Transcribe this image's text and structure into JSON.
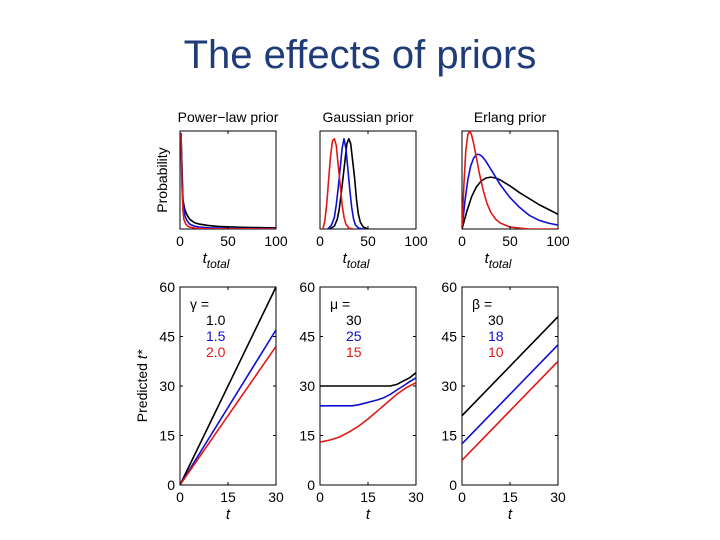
{
  "slide": {
    "title": "The effects of priors"
  },
  "colors": {
    "title": "#1f3b78",
    "black": "#000000",
    "blue": "#1010d0",
    "red": "#e01818",
    "axis": "#000000"
  },
  "chart_data": [
    {
      "id": "powerlaw-prior",
      "type": "line",
      "title": "Power−law prior",
      "ylabel": "Probability",
      "xlabel_main": "t",
      "xlabel_sub": "total",
      "xlim": [
        0,
        100
      ],
      "ylim": [
        0,
        1
      ],
      "xticks": [
        0,
        50,
        100
      ],
      "yticks": [],
      "series": [
        {
          "name": "1.0",
          "color": "black",
          "x": [
            1,
            3,
            5,
            7,
            10,
            15,
            20,
            30,
            40,
            50,
            60,
            70,
            80,
            90,
            100
          ],
          "y": [
            0.98,
            0.3,
            0.2,
            0.15,
            0.1,
            0.065,
            0.05,
            0.035,
            0.027,
            0.022,
            0.018,
            0.016,
            0.014,
            0.012,
            0.011
          ]
        },
        {
          "name": "1.5",
          "color": "blue",
          "x": [
            1,
            2,
            3,
            5,
            7,
            10,
            15,
            20,
            30,
            50,
            100
          ],
          "y": [
            0.98,
            0.6,
            0.3,
            0.14,
            0.09,
            0.05,
            0.03,
            0.02,
            0.012,
            0.006,
            0.002
          ]
        },
        {
          "name": "2.0",
          "color": "red",
          "x": [
            1,
            2,
            3,
            4,
            6,
            8,
            10,
            15,
            20,
            30,
            50,
            100
          ],
          "y": [
            0.98,
            0.45,
            0.2,
            0.1,
            0.05,
            0.03,
            0.02,
            0.01,
            0.005,
            0.002,
            0.001,
            0
          ]
        }
      ]
    },
    {
      "id": "gaussian-prior",
      "type": "line",
      "title": "Gaussian prior",
      "ylabel": "",
      "xlabel_main": "t",
      "xlabel_sub": "total",
      "xlim": [
        0,
        100
      ],
      "ylim": [
        0,
        1
      ],
      "xticks": [
        0,
        50,
        100
      ],
      "yticks": [],
      "series": [
        {
          "name": "30",
          "color": "black",
          "x": [
            10,
            15,
            18,
            20,
            22,
            24,
            26,
            28,
            30,
            32,
            34,
            36,
            38,
            40,
            42,
            45,
            50
          ],
          "y": [
            0,
            0.03,
            0.1,
            0.2,
            0.35,
            0.52,
            0.7,
            0.87,
            0.92,
            0.87,
            0.7,
            0.52,
            0.3,
            0.15,
            0.07,
            0.02,
            0
          ]
        },
        {
          "name": "25",
          "color": "blue",
          "x": [
            8,
            12,
            15,
            17,
            19,
            21,
            23,
            25,
            27,
            29,
            31,
            33,
            35,
            37,
            40,
            45
          ],
          "y": [
            0,
            0.04,
            0.12,
            0.25,
            0.42,
            0.62,
            0.82,
            0.92,
            0.82,
            0.62,
            0.4,
            0.22,
            0.1,
            0.04,
            0.01,
            0
          ]
        },
        {
          "name": "15",
          "color": "red",
          "x": [
            3,
            5,
            7,
            9,
            11,
            13,
            15,
            17,
            19,
            21,
            23,
            25,
            27,
            30,
            35
          ],
          "y": [
            0,
            0.08,
            0.25,
            0.5,
            0.75,
            0.9,
            0.92,
            0.85,
            0.65,
            0.45,
            0.25,
            0.12,
            0.05,
            0.01,
            0
          ]
        }
      ]
    },
    {
      "id": "erlang-prior",
      "type": "line",
      "title": "Erlang prior",
      "ylabel": "",
      "xlabel_main": "t",
      "xlabel_sub": "total",
      "xlim": [
        0,
        100
      ],
      "ylim": [
        0,
        1
      ],
      "xticks": [
        0,
        50,
        100
      ],
      "yticks": [],
      "series": [
        {
          "name": "30",
          "color": "black",
          "x": [
            0,
            5,
            10,
            15,
            20,
            25,
            30,
            35,
            40,
            50,
            60,
            70,
            80,
            90,
            100
          ],
          "y": [
            0,
            0.18,
            0.33,
            0.43,
            0.49,
            0.52,
            0.53,
            0.52,
            0.5,
            0.44,
            0.37,
            0.31,
            0.25,
            0.2,
            0.15
          ]
        },
        {
          "name": "18",
          "color": "blue",
          "x": [
            0,
            3,
            6,
            9,
            12,
            15,
            18,
            21,
            25,
            30,
            40,
            50,
            60,
            70,
            80,
            90,
            100
          ],
          "y": [
            0,
            0.28,
            0.5,
            0.64,
            0.72,
            0.76,
            0.76,
            0.74,
            0.69,
            0.61,
            0.45,
            0.32,
            0.22,
            0.14,
            0.09,
            0.06,
            0.04
          ]
        },
        {
          "name": "10",
          "color": "red",
          "x": [
            0,
            2,
            4,
            6,
            8,
            10,
            12,
            15,
            18,
            22,
            26,
            30,
            35,
            40,
            50,
            60,
            70,
            100
          ],
          "y": [
            0,
            0.45,
            0.8,
            0.96,
            1.0,
            0.96,
            0.88,
            0.73,
            0.57,
            0.4,
            0.26,
            0.17,
            0.1,
            0.06,
            0.02,
            0.01,
            0,
            0
          ]
        }
      ]
    },
    {
      "id": "powerlaw-prediction",
      "type": "line",
      "title": "",
      "ylabel": "Predicted t*",
      "xlabel_main": "t",
      "xlabel_sub": "",
      "xlim": [
        0,
        30
      ],
      "ylim": [
        0,
        60
      ],
      "xticks": [
        0,
        15,
        30
      ],
      "yticks": [
        0,
        15,
        30,
        45,
        60
      ],
      "legend_title": "γ =",
      "series": [
        {
          "name": "1.0",
          "color": "black",
          "x": [
            0,
            30
          ],
          "y": [
            0,
            60
          ]
        },
        {
          "name": "1.5",
          "color": "blue",
          "x": [
            0,
            30
          ],
          "y": [
            0,
            47
          ]
        },
        {
          "name": "2.0",
          "color": "red",
          "x": [
            0,
            30
          ],
          "y": [
            0,
            42
          ]
        }
      ]
    },
    {
      "id": "gaussian-prediction",
      "type": "line",
      "title": "",
      "ylabel": "",
      "xlabel_main": "t",
      "xlabel_sub": "",
      "xlim": [
        0,
        30
      ],
      "ylim": [
        0,
        60
      ],
      "xticks": [
        0,
        15,
        30
      ],
      "yticks": [
        0,
        15,
        30,
        45,
        60
      ],
      "legend_title": "μ =",
      "series": [
        {
          "name": "30",
          "color": "black",
          "x": [
            0,
            5,
            10,
            15,
            20,
            22,
            24,
            26,
            28,
            30
          ],
          "y": [
            30,
            30,
            30,
            30,
            30,
            30,
            30.5,
            31.5,
            32.5,
            34
          ]
        },
        {
          "name": "25",
          "color": "blue",
          "x": [
            0,
            5,
            10,
            12,
            14,
            16,
            18,
            20,
            22,
            24,
            26,
            28,
            30
          ],
          "y": [
            24,
            24,
            24,
            24.3,
            24.8,
            25.3,
            25.8,
            26.5,
            27.5,
            28.8,
            30,
            31.3,
            32.5
          ]
        },
        {
          "name": "15",
          "color": "red",
          "x": [
            0,
            3,
            6,
            9,
            12,
            15,
            18,
            21,
            24,
            27,
            30
          ],
          "y": [
            13,
            13.6,
            14.5,
            16,
            17.8,
            20,
            22.5,
            25,
            27.5,
            29.5,
            31
          ]
        }
      ]
    },
    {
      "id": "erlang-prediction",
      "type": "line",
      "title": "",
      "ylabel": "",
      "xlabel_main": "t",
      "xlabel_sub": "",
      "xlim": [
        0,
        30
      ],
      "ylim": [
        0,
        60
      ],
      "xticks": [
        0,
        15,
        30
      ],
      "yticks": [
        0,
        15,
        30,
        45,
        60
      ],
      "legend_title": "β =",
      "series": [
        {
          "name": "30",
          "color": "black",
          "x": [
            0,
            30
          ],
          "y": [
            21,
            51
          ]
        },
        {
          "name": "18",
          "color": "blue",
          "x": [
            0,
            30
          ],
          "y": [
            12.5,
            42.5
          ]
        },
        {
          "name": "10",
          "color": "red",
          "x": [
            0,
            30
          ],
          "y": [
            7.5,
            37.5
          ]
        }
      ]
    }
  ]
}
